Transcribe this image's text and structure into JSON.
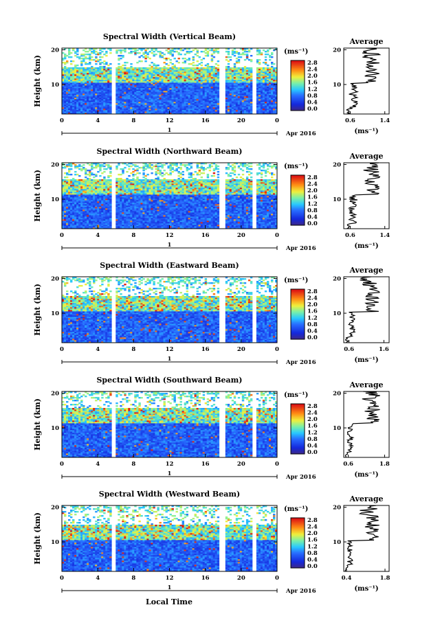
{
  "figure": {
    "y_axis_label": "Height (km)",
    "x_axis_label": "Local Time",
    "unit_label": "(ms⁻¹)",
    "date_label": "Apr 2016",
    "day_label": "1",
    "average_title": "Average"
  },
  "chart_data": [
    {
      "type": "heatmap",
      "title": "Spectral Width (Vertical Beam)",
      "xlabel": "",
      "ylabel": "Height (km)",
      "x_ticks": [
        "0",
        "4",
        "8",
        "12",
        "16",
        "20",
        "0"
      ],
      "y_ticks": [
        "10",
        "20"
      ],
      "xlim": [
        0,
        24
      ],
      "ylim": [
        1.5,
        20.5
      ],
      "colorbar_ticks": [
        "0.0",
        "0.4",
        "0.8",
        "1.2",
        "1.6",
        "2.0",
        "2.4",
        "2.8"
      ],
      "data_gaps_hours": [
        [
          5.6,
          6.1
        ],
        [
          17.6,
          18.2
        ],
        [
          21.2,
          21.8
        ]
      ],
      "average_profile": {
        "xlabel": "(ms⁻¹)",
        "x_ticks": [
          "0.6",
          "1.4"
        ],
        "xlim": [
          0.45,
          1.5
        ],
        "y_ticks": [
          "10",
          "20"
        ]
      }
    },
    {
      "type": "heatmap",
      "title": "Spectral Width (Northward Beam)",
      "xlabel": "",
      "ylabel": "Height (km)",
      "x_ticks": [
        "0",
        "4",
        "8",
        "12",
        "16",
        "20",
        "0"
      ],
      "y_ticks": [
        "10",
        "20"
      ],
      "xlim": [
        0,
        24
      ],
      "ylim": [
        1.5,
        20.5
      ],
      "colorbar_ticks": [
        "0.0",
        "0.4",
        "0.8",
        "1.2",
        "1.6",
        "2.0",
        "2.4",
        "2.8"
      ],
      "data_gaps_hours": [
        [
          5.6,
          6.1
        ],
        [
          17.6,
          18.2
        ],
        [
          21.2,
          21.8
        ]
      ],
      "average_profile": {
        "xlabel": "(ms⁻¹)",
        "x_ticks": [
          "0.6",
          "1.4"
        ],
        "xlim": [
          0.45,
          1.5
        ],
        "y_ticks": [
          "10",
          "20"
        ]
      }
    },
    {
      "type": "heatmap",
      "title": "Spectral Width (Eastward Beam)",
      "xlabel": "",
      "ylabel": "Height (km)",
      "x_ticks": [
        "0",
        "4",
        "8",
        "12",
        "16",
        "20",
        "0"
      ],
      "y_ticks": [
        "10",
        "20"
      ],
      "xlim": [
        0,
        24
      ],
      "ylim": [
        1.5,
        20.5
      ],
      "colorbar_ticks": [
        "0.0",
        "0.4",
        "0.8",
        "1.2",
        "1.6",
        "2.0",
        "2.4",
        "2.8"
      ],
      "data_gaps_hours": [
        [
          5.6,
          6.1
        ],
        [
          17.6,
          18.2
        ],
        [
          21.2,
          21.8
        ]
      ],
      "average_profile": {
        "xlabel": "(ms⁻¹)",
        "x_ticks": [
          "0.6",
          "1.6"
        ],
        "xlim": [
          0.45,
          1.75
        ],
        "y_ticks": [
          "10",
          "20"
        ]
      }
    },
    {
      "type": "heatmap",
      "title": "Spectral Width (Southward Beam)",
      "xlabel": "",
      "ylabel": "Height (km)",
      "x_ticks": [
        "0",
        "4",
        "8",
        "12",
        "16",
        "20",
        "0"
      ],
      "y_ticks": [
        "10",
        "20"
      ],
      "xlim": [
        0,
        24
      ],
      "ylim": [
        1.5,
        20.5
      ],
      "colorbar_ticks": [
        "0.0",
        "0.4",
        "0.8",
        "1.2",
        "1.6",
        "2.0",
        "2.4",
        "2.8"
      ],
      "data_gaps_hours": [
        [
          5.6,
          6.1
        ],
        [
          17.6,
          18.2
        ],
        [
          21.2,
          21.8
        ]
      ],
      "average_profile": {
        "xlabel": "(ms⁻¹)",
        "x_ticks": [
          "0.6",
          "1.8"
        ],
        "xlim": [
          0.45,
          1.95
        ],
        "y_ticks": [
          "10",
          "20"
        ]
      }
    },
    {
      "type": "heatmap",
      "title": "Spectral Width (Westward Beam)",
      "xlabel": "",
      "ylabel": "Height (km)",
      "x_ticks": [
        "0",
        "4",
        "8",
        "12",
        "16",
        "20",
        "0"
      ],
      "y_ticks": [
        "10",
        "20"
      ],
      "xlim": [
        0,
        24
      ],
      "ylim": [
        1.5,
        20.5
      ],
      "colorbar_ticks": [
        "0.0",
        "0.4",
        "0.8",
        "1.2",
        "1.6",
        "2.0",
        "2.4",
        "2.8"
      ],
      "data_gaps_hours": [
        [
          5.6,
          6.1
        ],
        [
          17.6,
          18.2
        ],
        [
          21.2,
          21.8
        ]
      ],
      "average_profile": {
        "xlabel": "(ms⁻¹)",
        "x_ticks": [
          "0.4",
          "1.8"
        ],
        "xlim": [
          0.3,
          1.95
        ],
        "y_ticks": [
          "10",
          "20"
        ]
      }
    }
  ]
}
